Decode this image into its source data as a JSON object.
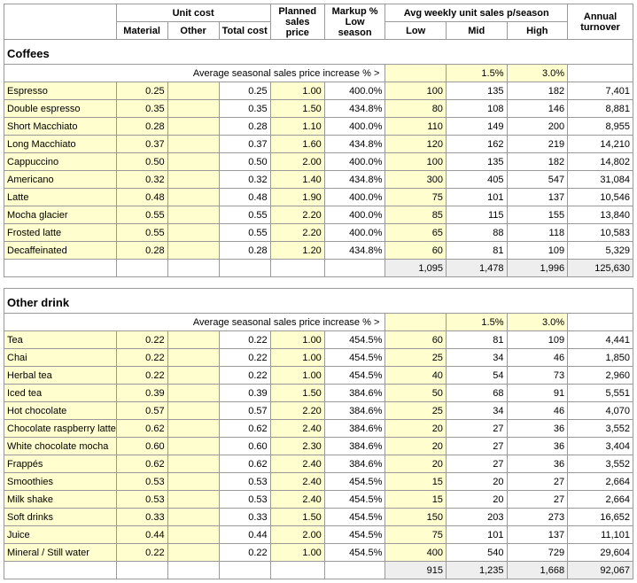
{
  "headers": {
    "unit_cost": "Unit cost",
    "planned": "Planned sales price",
    "markup": "Markup % Low season",
    "avg_weekly": "Avg weekly unit sales p/season",
    "annual": "Annual turnover",
    "material": "Material",
    "other": "Other",
    "total": "Total cost",
    "low": "Low",
    "mid": "Mid",
    "high": "High"
  },
  "seasonal_label": "Average seasonal sales price increase % >",
  "sections": [
    {
      "title": "Coffees",
      "seasonal_mid": "1.5%",
      "seasonal_high": "3.0%",
      "rows": [
        {
          "name": "Espresso",
          "material": "0.25",
          "other": "",
          "total": "0.25",
          "planned": "1.00",
          "markup": "400.0%",
          "low": "100",
          "mid": "135",
          "high": "182",
          "annual": "7,401"
        },
        {
          "name": "Double espresso",
          "material": "0.35",
          "other": "",
          "total": "0.35",
          "planned": "1.50",
          "markup": "434.8%",
          "low": "80",
          "mid": "108",
          "high": "146",
          "annual": "8,881"
        },
        {
          "name": "Short Macchiato",
          "material": "0.28",
          "other": "",
          "total": "0.28",
          "planned": "1.10",
          "markup": "400.0%",
          "low": "110",
          "mid": "149",
          "high": "200",
          "annual": "8,955"
        },
        {
          "name": "Long Macchiato",
          "material": "0.37",
          "other": "",
          "total": "0.37",
          "planned": "1.60",
          "markup": "434.8%",
          "low": "120",
          "mid": "162",
          "high": "219",
          "annual": "14,210"
        },
        {
          "name": "Cappuccino",
          "material": "0.50",
          "other": "",
          "total": "0.50",
          "planned": "2.00",
          "markup": "400.0%",
          "low": "100",
          "mid": "135",
          "high": "182",
          "annual": "14,802"
        },
        {
          "name": "Americano",
          "material": "0.32",
          "other": "",
          "total": "0.32",
          "planned": "1.40",
          "markup": "434.8%",
          "low": "300",
          "mid": "405",
          "high": "547",
          "annual": "31,084"
        },
        {
          "name": "Latte",
          "material": "0.48",
          "other": "",
          "total": "0.48",
          "planned": "1.90",
          "markup": "400.0%",
          "low": "75",
          "mid": "101",
          "high": "137",
          "annual": "10,546"
        },
        {
          "name": "Mocha glacier",
          "material": "0.55",
          "other": "",
          "total": "0.55",
          "planned": "2.20",
          "markup": "400.0%",
          "low": "85",
          "mid": "115",
          "high": "155",
          "annual": "13,840"
        },
        {
          "name": "Frosted latte",
          "material": "0.55",
          "other": "",
          "total": "0.55",
          "planned": "2.20",
          "markup": "400.0%",
          "low": "65",
          "mid": "88",
          "high": "118",
          "annual": "10,583"
        },
        {
          "name": "Decaffeinated",
          "material": "0.28",
          "other": "",
          "total": "0.28",
          "planned": "1.20",
          "markup": "434.8%",
          "low": "60",
          "mid": "81",
          "high": "109",
          "annual": "5,329"
        }
      ],
      "subtotal": {
        "low": "1,095",
        "mid": "1,478",
        "high": "1,996",
        "annual": "125,630"
      }
    },
    {
      "title": "Other drink",
      "seasonal_mid": "1.5%",
      "seasonal_high": "3.0%",
      "rows": [
        {
          "name": "Tea",
          "material": "0.22",
          "other": "",
          "total": "0.22",
          "planned": "1.00",
          "markup": "454.5%",
          "low": "60",
          "mid": "81",
          "high": "109",
          "annual": "4,441"
        },
        {
          "name": "Chai",
          "material": "0.22",
          "other": "",
          "total": "0.22",
          "planned": "1.00",
          "markup": "454.5%",
          "low": "25",
          "mid": "34",
          "high": "46",
          "annual": "1,850"
        },
        {
          "name": "Herbal tea",
          "material": "0.22",
          "other": "",
          "total": "0.22",
          "planned": "1.00",
          "markup": "454.5%",
          "low": "40",
          "mid": "54",
          "high": "73",
          "annual": "2,960"
        },
        {
          "name": "Iced tea",
          "material": "0.39",
          "other": "",
          "total": "0.39",
          "planned": "1.50",
          "markup": "384.6%",
          "low": "50",
          "mid": "68",
          "high": "91",
          "annual": "5,551"
        },
        {
          "name": "Hot chocolate",
          "material": "0.57",
          "other": "",
          "total": "0.57",
          "planned": "2.20",
          "markup": "384.6%",
          "low": "25",
          "mid": "34",
          "high": "46",
          "annual": "4,070"
        },
        {
          "name": "Chocolate raspberry latte",
          "material": "0.62",
          "other": "",
          "total": "0.62",
          "planned": "2.40",
          "markup": "384.6%",
          "low": "20",
          "mid": "27",
          "high": "36",
          "annual": "3,552"
        },
        {
          "name": "White chocolate mocha",
          "material": "0.60",
          "other": "",
          "total": "0.60",
          "planned": "2.30",
          "markup": "384.6%",
          "low": "20",
          "mid": "27",
          "high": "36",
          "annual": "3,404"
        },
        {
          "name": "Frappés",
          "material": "0.62",
          "other": "",
          "total": "0.62",
          "planned": "2.40",
          "markup": "384.6%",
          "low": "20",
          "mid": "27",
          "high": "36",
          "annual": "3,552"
        },
        {
          "name": "Smoothies",
          "material": "0.53",
          "other": "",
          "total": "0.53",
          "planned": "2.40",
          "markup": "454.5%",
          "low": "15",
          "mid": "20",
          "high": "27",
          "annual": "2,664"
        },
        {
          "name": "Milk shake",
          "material": "0.53",
          "other": "",
          "total": "0.53",
          "planned": "2.40",
          "markup": "454.5%",
          "low": "15",
          "mid": "20",
          "high": "27",
          "annual": "2,664"
        },
        {
          "name": "Soft drinks",
          "material": "0.33",
          "other": "",
          "total": "0.33",
          "planned": "1.50",
          "markup": "454.5%",
          "low": "150",
          "mid": "203",
          "high": "273",
          "annual": "16,652"
        },
        {
          "name": "Juice",
          "material": "0.44",
          "other": "",
          "total": "0.44",
          "planned": "2.00",
          "markup": "454.5%",
          "low": "75",
          "mid": "101",
          "high": "137",
          "annual": "11,101"
        },
        {
          "name": "Mineral / Still water",
          "material": "0.22",
          "other": "",
          "total": "0.22",
          "planned": "1.00",
          "markup": "454.5%",
          "low": "400",
          "mid": "540",
          "high": "729",
          "annual": "29,604"
        }
      ],
      "subtotal": {
        "low": "915",
        "mid": "1,235",
        "high": "1,668",
        "annual": "92,067"
      }
    }
  ],
  "colors": {
    "editable_bg": "#fffecf",
    "subtotal_bg": "#eeeeee",
    "border": "#999999"
  }
}
